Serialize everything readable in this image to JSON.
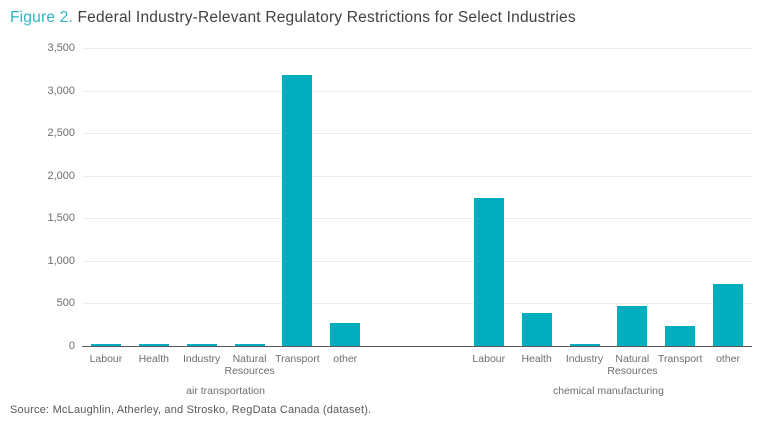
{
  "header": {
    "figure_label": "Figure 2.",
    "title": " Federal Industry-Relevant Regulatory Restrictions for Select Industries"
  },
  "source": "Source: McLaughlin, Atherley, and Strosko, RegData Canada (dataset).",
  "colors": {
    "bar": "#00aebd",
    "figure_label": "#2bb5c3",
    "title_text": "#414042",
    "axis_labels": "#6d6e71",
    "gridline": "#ededed",
    "axis_line": "#58595b"
  },
  "chart_data": {
    "type": "bar",
    "title": "Figure 2. Federal Industry-Relevant Regulatory Restrictions for Select Industries",
    "xlabel": "",
    "ylabel": "",
    "ylim": [
      0,
      3500
    ],
    "ytick_step": 500,
    "yticks": [
      "3,500",
      "3,000",
      "2,500",
      "2,000",
      "1,500",
      "1,000",
      "500",
      "0"
    ],
    "grid": true,
    "legend": false,
    "bar_color": "#00aebd",
    "categories": [
      "Labour",
      "Health",
      "Industry",
      "Natural Resources",
      "Transport",
      "other"
    ],
    "groups": [
      {
        "label": "air transportation",
        "values": [
          10,
          25,
          10,
          25,
          3180,
          270
        ]
      },
      {
        "label": "chemical manufacturing",
        "values": [
          1740,
          390,
          10,
          470,
          240,
          730
        ]
      }
    ]
  }
}
